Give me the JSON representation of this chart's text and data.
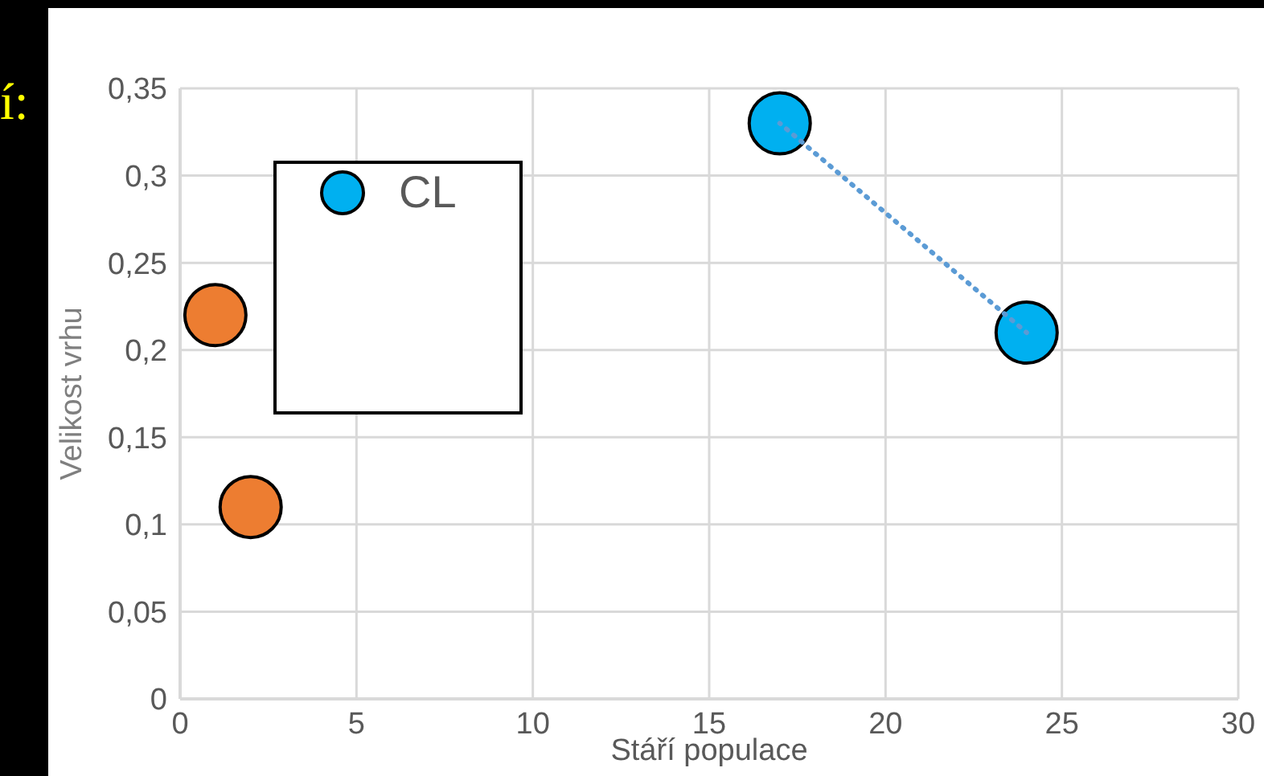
{
  "chart_data": {
    "type": "scatter",
    "xlabel": "Stáří populace",
    "ylabel": "Velikost vrhu",
    "annotations": [
      "í:"
    ],
    "xlim": [
      0,
      30
    ],
    "xticks": [
      0,
      5,
      10,
      15,
      20,
      25,
      30
    ],
    "ylim": [
      0,
      0.35
    ],
    "yticks": [
      {
        "value": 0,
        "label": "0"
      },
      {
        "value": 0.05,
        "label": "0,05"
      },
      {
        "value": 0.1,
        "label": "0,1"
      },
      {
        "value": 0.15,
        "label": "0,15"
      },
      {
        "value": 0.2,
        "label": "0,2"
      },
      {
        "value": 0.25,
        "label": "0,25"
      },
      {
        "value": 0.3,
        "label": "0,3"
      },
      {
        "value": 0.35,
        "label": "0,35"
      }
    ],
    "grid": true,
    "legend": "left",
    "marker": "circle",
    "series": [
      {
        "type": "scatter",
        "color": "#ed7d31",
        "x": [
          1,
          2
        ],
        "values": [
          0.22,
          0.11
        ]
      },
      {
        "type": "scatter",
        "name": "CL",
        "color": "#00b0f0",
        "x": [
          17,
          24
        ],
        "values": [
          0.33,
          0.21
        ]
      },
      {
        "type": "line",
        "color": "#5b9bd5",
        "line_style": "dotted",
        "marker": "none",
        "x": [
          17,
          24
        ],
        "values": [
          0.33,
          0.21
        ]
      }
    ]
  }
}
